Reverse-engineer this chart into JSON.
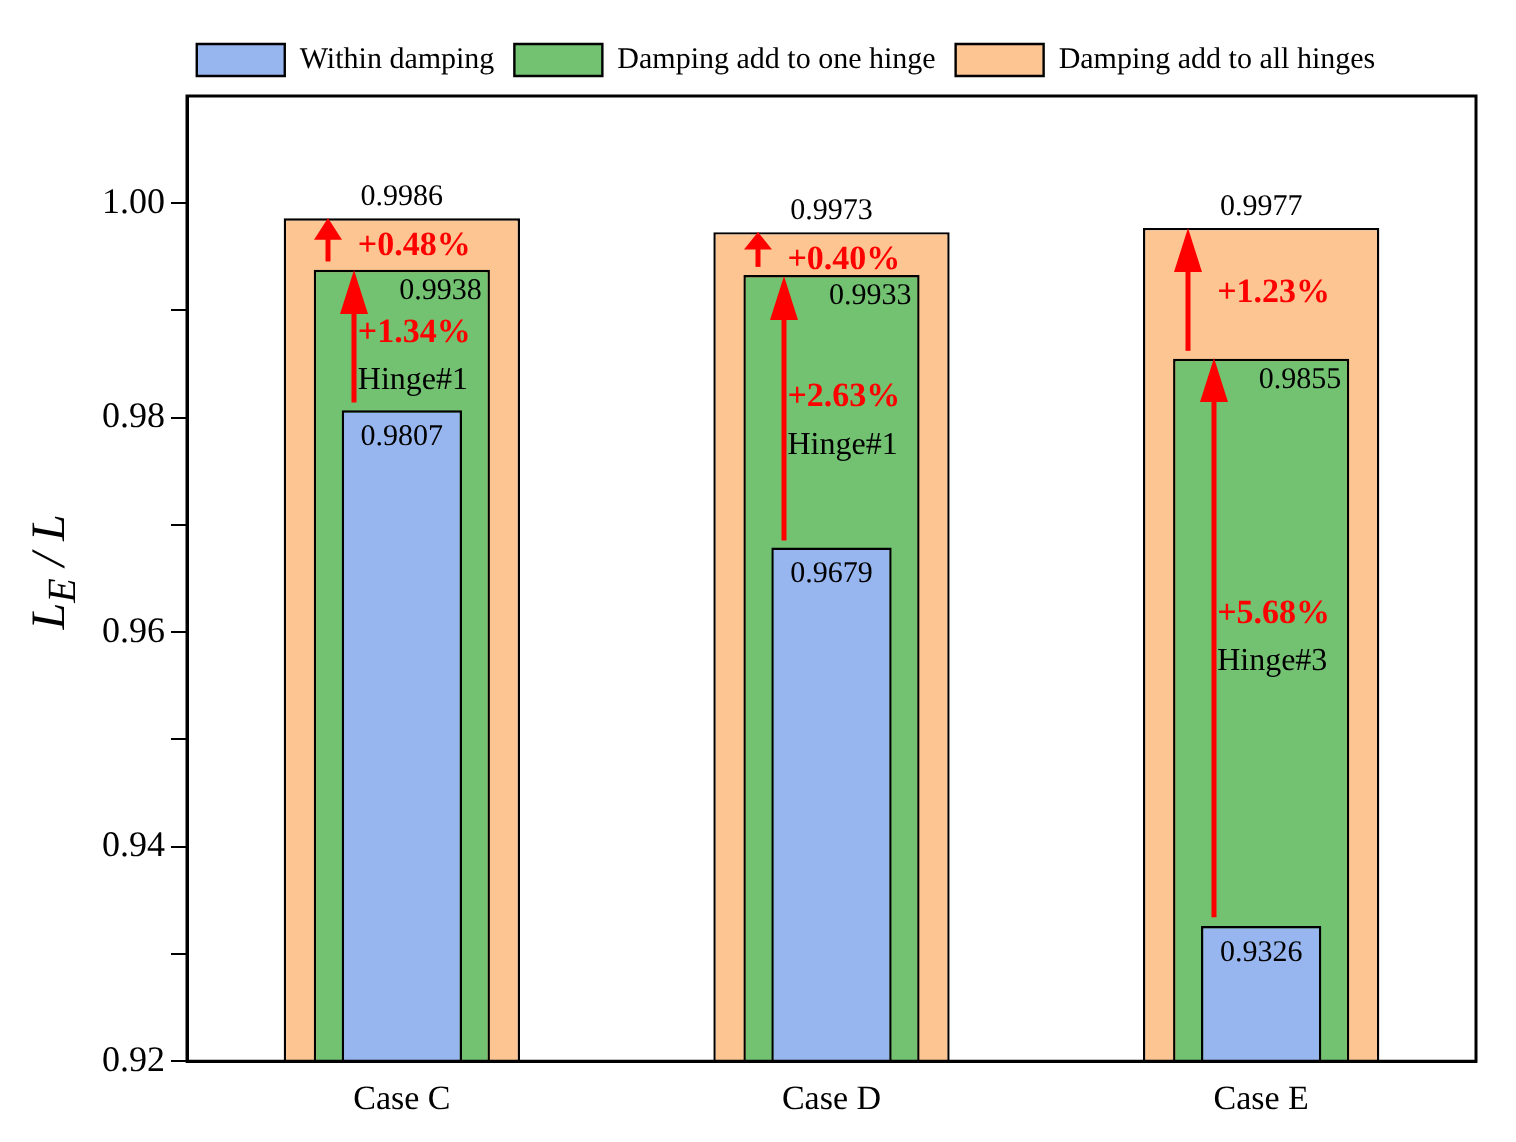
{
  "chart_data": {
    "type": "bar",
    "ylabel": "L$_{E}$ / L",
    "categories": [
      "Case C",
      "Case D",
      "Case E"
    ],
    "series": [
      {
        "name": "Damping add to all hinges",
        "color": "#fcc592",
        "values": [
          0.9986,
          0.9973,
          0.9977
        ]
      },
      {
        "name": "Damping add to one hinge",
        "color": "#73c272",
        "values": [
          0.9938,
          0.9933,
          0.9855
        ]
      },
      {
        "name": "Within damping",
        "color": "#97b6ef",
        "values": [
          0.9807,
          0.9679,
          0.9326
        ]
      }
    ],
    "ylim": [
      0.92,
      1.01
    ],
    "yticks": [
      0.92,
      {
        "value": 0.93,
        "label": null
      },
      0.94,
      {
        "value": 0.95,
        "label": null
      },
      0.96,
      {
        "value": 0.97,
        "label": null
      },
      0.98,
      {
        "value": 0.99,
        "label": null
      },
      {
        "value": 1.0,
        "label": "1.00"
      }
    ],
    "data_labels": true,
    "legend": "top",
    "grid": false,
    "annotations": [
      "+0.48%",
      "+1.34%",
      "Hinge#1",
      "+0.40%",
      "+2.63%",
      "Hinge#1",
      "+1.23%",
      "+5.68%",
      "Hinge#3"
    ]
  }
}
